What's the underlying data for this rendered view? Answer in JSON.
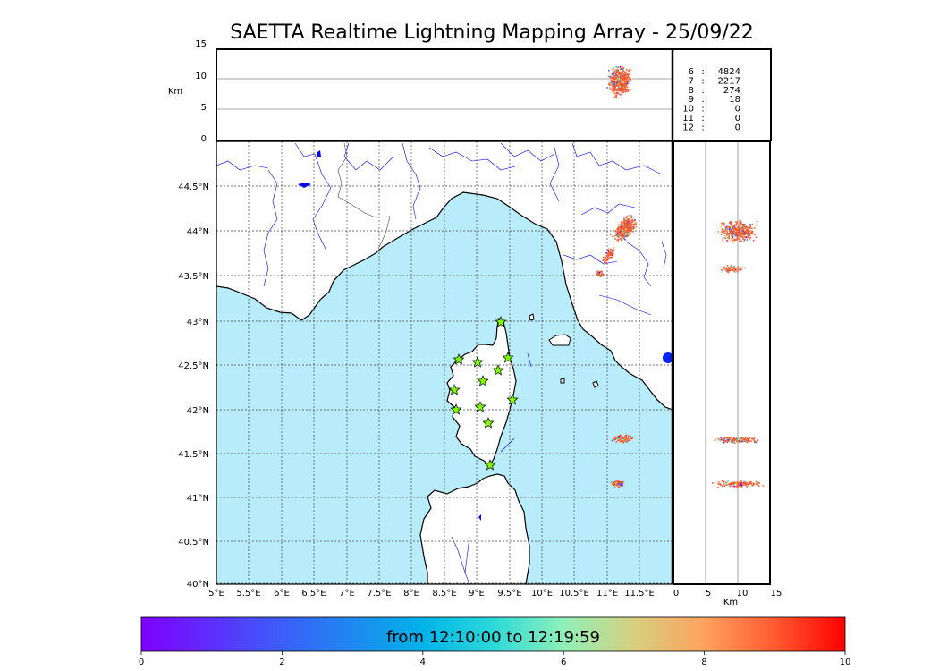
{
  "title": "SAETTA Realtime Lightning Mapping Array - 25/09/22",
  "top_panel": {
    "ylabel": "Km",
    "yticks": [
      "15",
      "10",
      "5",
      "0"
    ],
    "counts": [
      {
        "k": "6",
        "v": "4824",
        "color": "#ff0000"
      },
      {
        "k": "7",
        "v": "2217",
        "color": "#000000"
      },
      {
        "k": "8",
        "v": "274",
        "color": "#000000"
      },
      {
        "k": "9",
        "v": "18",
        "color": "#000000"
      },
      {
        "k": "10",
        "v": "0",
        "color": "#000000"
      },
      {
        "k": "11",
        "v": "0",
        "color": "#000000"
      },
      {
        "k": "12",
        "v": "0",
        "color": "#000000"
      }
    ]
  },
  "map": {
    "lat_ticks": [
      "44.5°N",
      "44°N",
      "43.5°N",
      "43°N",
      "42.5°N",
      "42°N",
      "41.5°N",
      "41°N",
      "40.5°N",
      "40°N"
    ],
    "lon_ticks": [
      "5°E",
      "5.5°E",
      "6°E",
      "6.5°E",
      "7°E",
      "7.5°E",
      "8°E",
      "8.5°E",
      "9°E",
      "9.5°E",
      "10°E",
      "10.5°E",
      "11°E",
      "11.5°E"
    ],
    "sea_color": "#b8ecfa",
    "land_color": "#ffffff",
    "river_color": "#0000ff"
  },
  "side_panel": {
    "xlabel": "Km",
    "xticks": [
      "0",
      "5",
      "10",
      "15"
    ]
  },
  "colorbar": {
    "label": "from 12:10:00 to 12:19:59",
    "ticks": [
      "0",
      "2",
      "4",
      "6",
      "8",
      "10"
    ]
  }
}
